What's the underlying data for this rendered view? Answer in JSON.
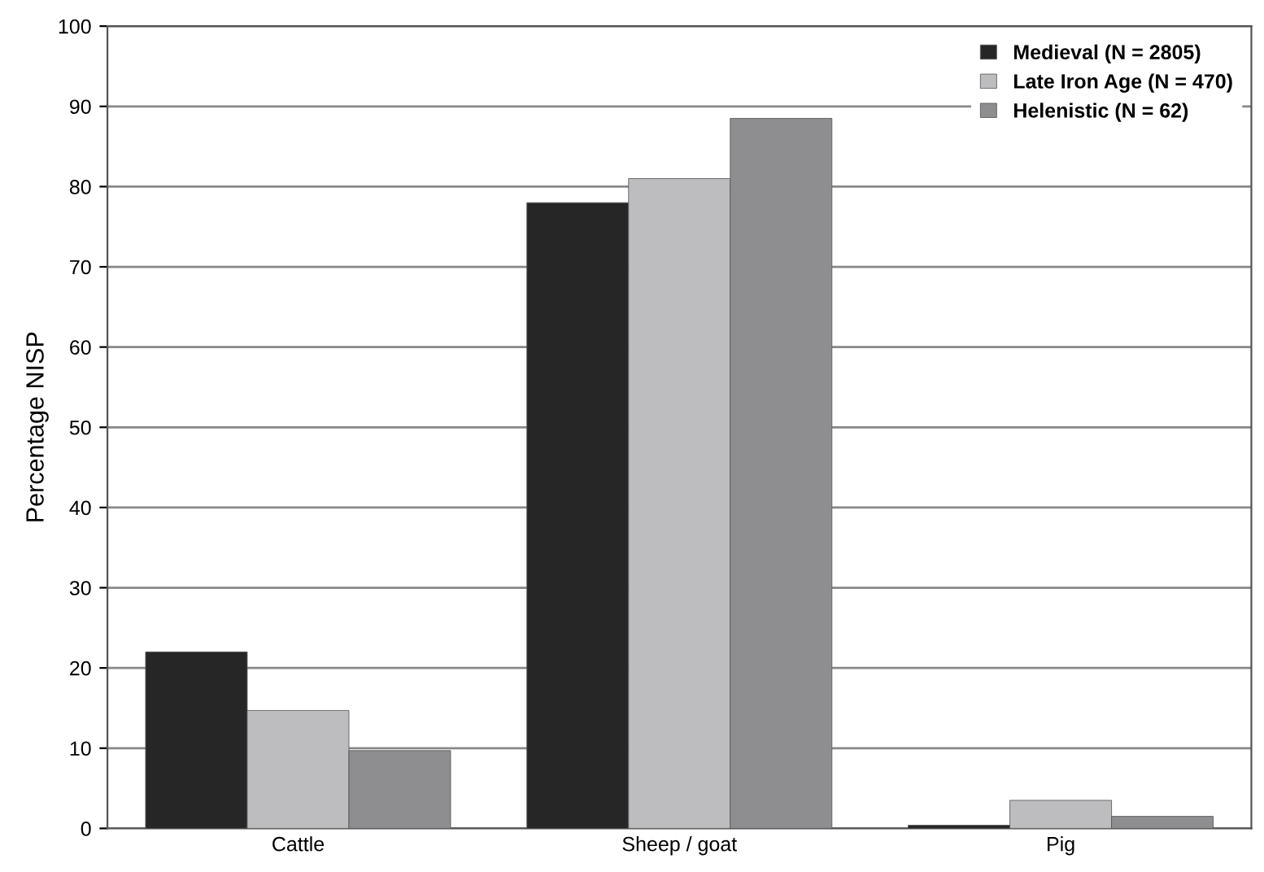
{
  "chart_data": {
    "type": "bar",
    "ylabel": "Percentage NISP",
    "categories": [
      "Cattle",
      "Sheep / goat",
      "Pig"
    ],
    "series": [
      {
        "name": "Medieval (N = 2805)",
        "color": "#262626",
        "values": [
          22,
          78,
          0.4
        ]
      },
      {
        "name": "Late Iron Age (N = 470)",
        "color": "#bdbdbf",
        "values": [
          14.7,
          81,
          3.5
        ]
      },
      {
        "name": "Helenistic (N = 62)",
        "color": "#8e8e90",
        "values": [
          9.7,
          88.5,
          1.5
        ]
      }
    ],
    "ylim": [
      0,
      100
    ],
    "yticks": [
      0,
      10,
      20,
      30,
      40,
      50,
      60,
      70,
      80,
      90,
      100
    ],
    "grid": "y",
    "legend": "top right"
  }
}
